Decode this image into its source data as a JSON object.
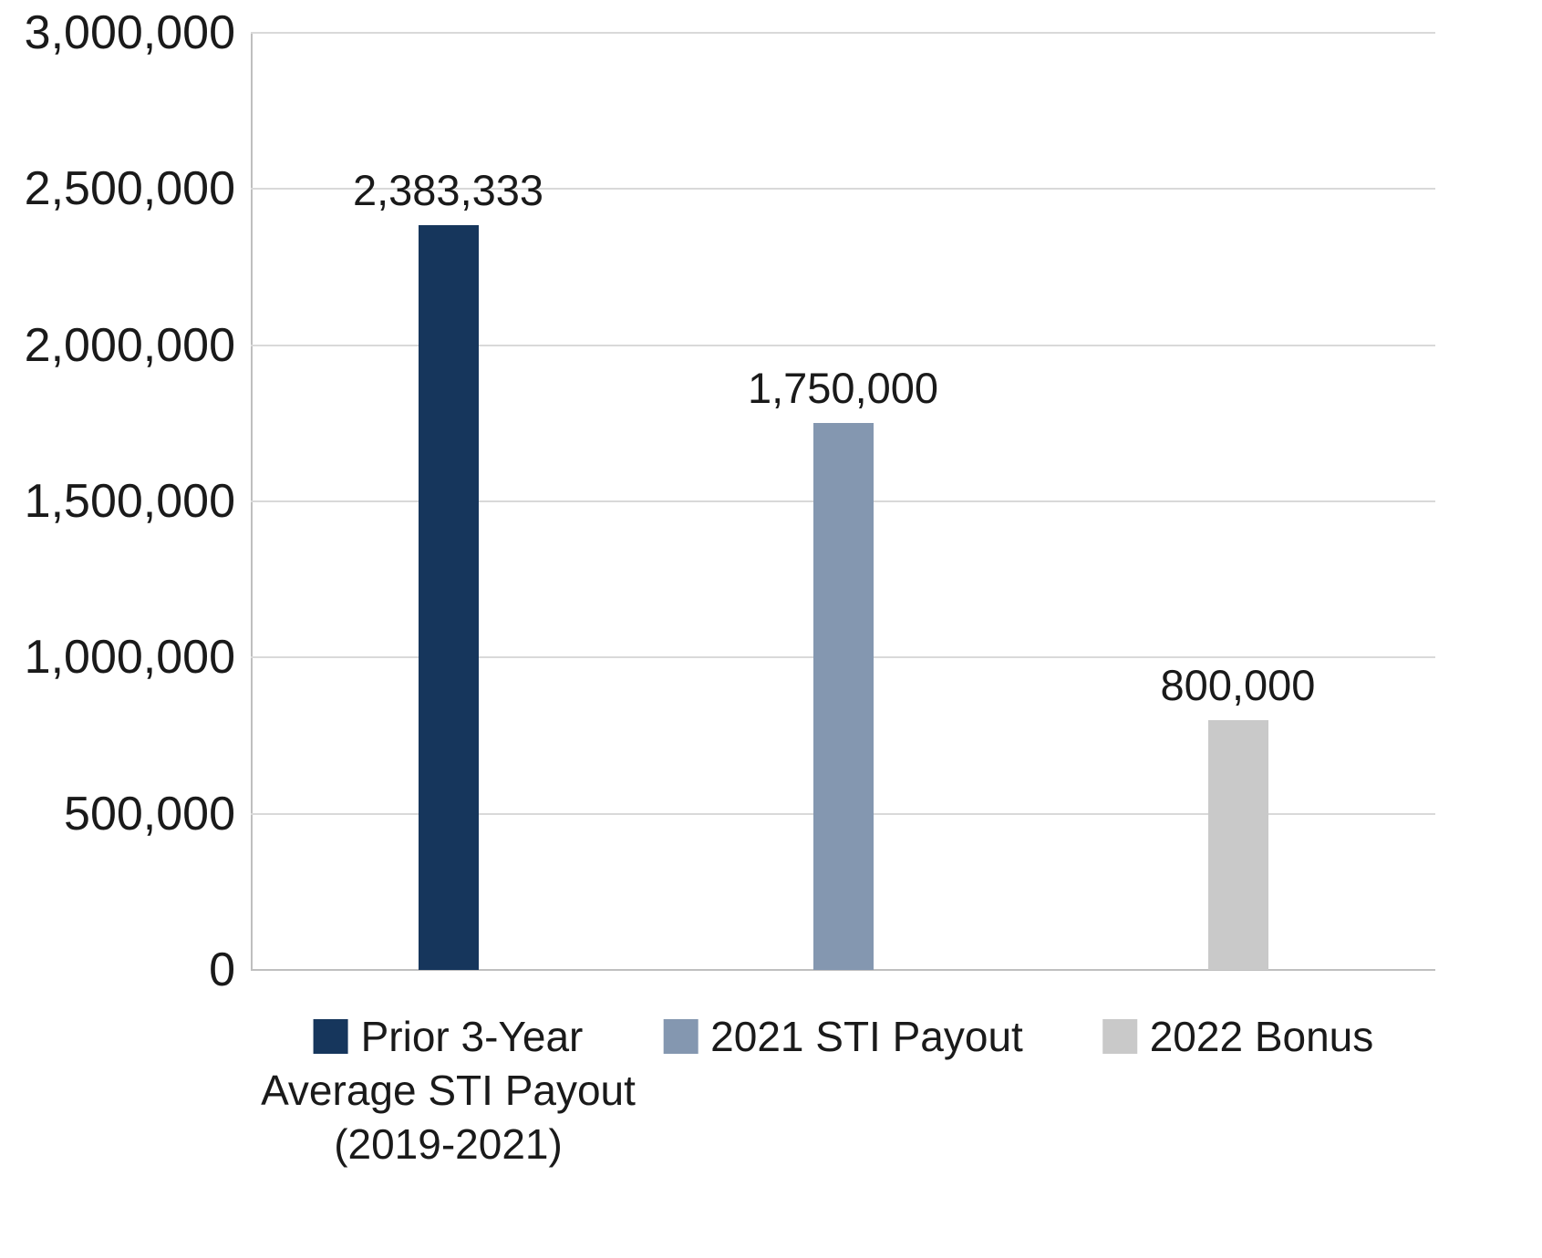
{
  "chart_data": {
    "type": "bar",
    "title": "",
    "xlabel": "",
    "ylabel": "",
    "ylim": [
      0,
      3000000
    ],
    "grid": true,
    "legend_position": "bottom",
    "yticks": [
      "3,000,000",
      "2,500,000",
      "2,000,000",
      "1,500,000",
      "1,000,000",
      "500,000",
      "0"
    ],
    "ytick_values": [
      3000000,
      2500000,
      2000000,
      1500000,
      1000000,
      500000,
      0
    ],
    "categories": [
      "Prior 3-Year Average STI Payout (2019-2021)",
      "2021 STI Payout",
      "2022 Bonus"
    ],
    "series": [
      {
        "name": "Prior 3-Year Average STI Payout (2019-2021)",
        "value": 2383333,
        "data_label": "2,383,333",
        "legend_label": "Prior 3-Year\nAverage STI Payout\n(2019-2021)",
        "color": "#16365c"
      },
      {
        "name": "2021 STI Payout",
        "value": 1750000,
        "data_label": "1,750,000",
        "legend_label": "2021 STI Payout",
        "color": "#8497b0"
      },
      {
        "name": "2022 Bonus",
        "value": 800000,
        "data_label": "800,000",
        "legend_label": "2022 Bonus",
        "color": "#c9c9c9"
      }
    ],
    "colors": {
      "gridline": "#d9d9d9",
      "axis_line": "#bfbfbf",
      "text": "#1a1a1a",
      "background": "#ffffff"
    }
  }
}
